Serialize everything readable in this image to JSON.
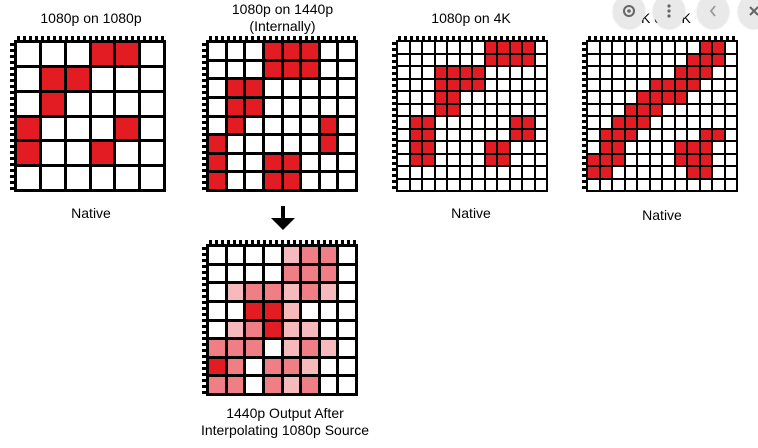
{
  "captions": {
    "p1_title": "1080p on 1080p",
    "p1_native": "Native",
    "p2_title_line1": "1080p on 1440p",
    "p2_title_line2": "(Internally)",
    "p3_title": "1080p on 4K",
    "p3_native": "Native",
    "p4_title": "4K on 4K",
    "p4_native": "Native",
    "p5_line1": "1440p Output After",
    "p5_line2": "Interpolating 1080p Source"
  },
  "colors": {
    "red": "#e31c23",
    "pink1": "#ef7f84",
    "pink2": "#f6b9bc",
    "grid": "#000000"
  },
  "overlay": {
    "buttons": [
      "lens-icon",
      "more-icon",
      "chevron-left-icon",
      "close-icon"
    ]
  },
  "grids": {
    "p1": {
      "n": 6,
      "red": [
        [
          1,
          4
        ],
        [
          1,
          5
        ],
        [
          2,
          2
        ],
        [
          2,
          3
        ],
        [
          3,
          2
        ],
        [
          4,
          1
        ],
        [
          4,
          5
        ],
        [
          5,
          1
        ],
        [
          5,
          4
        ]
      ]
    },
    "p2": {
      "n": 8,
      "fills": [
        [
          1,
          4,
          "r"
        ],
        [
          1,
          5,
          "r"
        ],
        [
          1,
          6,
          "r"
        ],
        [
          2,
          4,
          "r"
        ],
        [
          2,
          5,
          "r"
        ],
        [
          2,
          6,
          "r"
        ],
        [
          3,
          2,
          "r"
        ],
        [
          3,
          3,
          "r"
        ],
        [
          4,
          2,
          "r"
        ],
        [
          4,
          3,
          "r"
        ],
        [
          5,
          2,
          "r"
        ],
        [
          5,
          7,
          "r"
        ],
        [
          6,
          1,
          "r"
        ],
        [
          6,
          7,
          "r"
        ],
        [
          7,
          1,
          "r"
        ],
        [
          7,
          4,
          "r"
        ],
        [
          7,
          5,
          "r"
        ],
        [
          8,
          1,
          "r"
        ],
        [
          8,
          4,
          "r"
        ],
        [
          8,
          5,
          "r"
        ]
      ]
    },
    "p3": {
      "n": 12,
      "red": [
        [
          1,
          8
        ],
        [
          1,
          9
        ],
        [
          1,
          10
        ],
        [
          1,
          11
        ],
        [
          2,
          8
        ],
        [
          2,
          9
        ],
        [
          2,
          10
        ],
        [
          2,
          11
        ],
        [
          3,
          4
        ],
        [
          3,
          5
        ],
        [
          3,
          6
        ],
        [
          3,
          7
        ],
        [
          4,
          4
        ],
        [
          4,
          5
        ],
        [
          4,
          6
        ],
        [
          4,
          7
        ],
        [
          5,
          4
        ],
        [
          5,
          5
        ],
        [
          6,
          4
        ],
        [
          6,
          5
        ],
        [
          7,
          2
        ],
        [
          7,
          3
        ],
        [
          7,
          10
        ],
        [
          7,
          11
        ],
        [
          8,
          2
        ],
        [
          8,
          3
        ],
        [
          8,
          10
        ],
        [
          8,
          11
        ],
        [
          9,
          2
        ],
        [
          9,
          3
        ],
        [
          9,
          8
        ],
        [
          9,
          9
        ],
        [
          10,
          2
        ],
        [
          10,
          3
        ],
        [
          10,
          8
        ],
        [
          10,
          9
        ]
      ]
    },
    "p4": {
      "n": 12,
      "red": [
        [
          1,
          10
        ],
        [
          1,
          11
        ],
        [
          2,
          9
        ],
        [
          2,
          10
        ],
        [
          2,
          11
        ],
        [
          3,
          8
        ],
        [
          3,
          9
        ],
        [
          3,
          10
        ],
        [
          4,
          6
        ],
        [
          4,
          7
        ],
        [
          4,
          8
        ],
        [
          4,
          9
        ],
        [
          5,
          5
        ],
        [
          5,
          6
        ],
        [
          5,
          7
        ],
        [
          5,
          8
        ],
        [
          6,
          4
        ],
        [
          6,
          5
        ],
        [
          6,
          6
        ],
        [
          7,
          3
        ],
        [
          7,
          4
        ],
        [
          7,
          5
        ],
        [
          8,
          2
        ],
        [
          8,
          3
        ],
        [
          8,
          4
        ],
        [
          8,
          10
        ],
        [
          8,
          11
        ],
        [
          9,
          2
        ],
        [
          9,
          3
        ],
        [
          9,
          8
        ],
        [
          9,
          9
        ],
        [
          9,
          10
        ],
        [
          10,
          1
        ],
        [
          10,
          2
        ],
        [
          10,
          3
        ],
        [
          10,
          8
        ],
        [
          10,
          9
        ],
        [
          10,
          10
        ],
        [
          11,
          1
        ],
        [
          11,
          2
        ],
        [
          11,
          9
        ],
        [
          11,
          10
        ]
      ]
    },
    "p5": {
      "n": 8,
      "fills": [
        [
          1,
          5,
          "p2"
        ],
        [
          1,
          6,
          "p1"
        ],
        [
          1,
          7,
          "p1"
        ],
        [
          2,
          5,
          "p1"
        ],
        [
          2,
          6,
          "p1"
        ],
        [
          2,
          7,
          "p1"
        ],
        [
          3,
          2,
          "p2"
        ],
        [
          3,
          3,
          "p1"
        ],
        [
          3,
          4,
          "p1"
        ],
        [
          3,
          5,
          "p2"
        ],
        [
          3,
          6,
          "p1"
        ],
        [
          3,
          7,
          "p2"
        ],
        [
          4,
          3,
          "r"
        ],
        [
          4,
          4,
          "r"
        ],
        [
          4,
          5,
          "p2"
        ],
        [
          5,
          2,
          "p2"
        ],
        [
          5,
          3,
          "p1"
        ],
        [
          5,
          4,
          "r"
        ],
        [
          5,
          5,
          "p2"
        ],
        [
          5,
          6,
          "p2"
        ],
        [
          6,
          1,
          "p1"
        ],
        [
          6,
          2,
          "p1"
        ],
        [
          6,
          3,
          "p1"
        ],
        [
          6,
          5,
          "p2"
        ],
        [
          6,
          6,
          "p1"
        ],
        [
          6,
          7,
          "p2"
        ],
        [
          7,
          1,
          "r"
        ],
        [
          7,
          2,
          "p1"
        ],
        [
          7,
          4,
          "p1"
        ],
        [
          7,
          5,
          "p1"
        ],
        [
          7,
          6,
          "p2"
        ],
        [
          8,
          1,
          "p1"
        ],
        [
          8,
          2,
          "p1"
        ],
        [
          8,
          4,
          "p1"
        ],
        [
          8,
          5,
          "p2"
        ],
        [
          8,
          6,
          "p1"
        ]
      ]
    }
  }
}
